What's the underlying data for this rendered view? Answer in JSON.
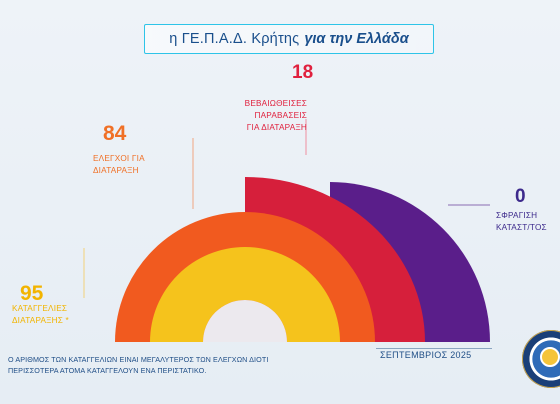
{
  "header": {
    "title_light": "η ΓΕ.Π.Α.Δ. Κρήτης",
    "title_bold": "για την Ελλάδα"
  },
  "chart_data": {
    "type": "bar",
    "categories": [
      "ΚΑΤΑΓΓΕΛΙΕΣ ΔΙΑΤΑΡΑΞΗΣ *",
      "ΕΛΕΓΧΟΙ ΓΙΑ ΔΙΑΤΑΡΑΞΗ",
      "ΒΕΒΑΙΩΘΕΙΣΕΣ ΠΑΡΑΒΑΣΕΙΣ ΓΙΑ ΔΙΑΤΑΡΑΞΗ",
      "ΣΦΡΑΓΙΣΗ ΚΑΤΑΣΤ/ΤΟΣ"
    ],
    "values": [
      95,
      84,
      18,
      0
    ],
    "labels": [
      {
        "value": "95",
        "line1": "ΚΑΤΑΓΓΕΛΙΕΣ",
        "line2": "ΔΙΑΤΑΡΑΞΗΣ  *"
      },
      {
        "value": "84",
        "line1": "ΕΛΕΓΧΟΙ ΓΙΑ",
        "line2": "ΔΙΑΤΑΡΑΞΗ"
      },
      {
        "value": "18",
        "line1": "ΒΕΒΑΙΩΘΕΙΣΕΣ",
        "line2": "ΠΑΡΑΒΑΣΕΙΣ",
        "line3": "ΓΙΑ ΔΙΑΤΑΡΑΞΗ"
      },
      {
        "value": "0",
        "line1": "ΣΦΡΑΓΙΣΗ",
        "line2": "ΚΑΤΑΣΤ/ΤΟΣ"
      }
    ],
    "colors": [
      "#f5c31c",
      "#f15a1f",
      "#d61f3b",
      "#5a1e8a"
    ],
    "value_colors": [
      "#f2b400",
      "#f07026",
      "#e0213e",
      "#3d2a8c"
    ]
  },
  "footer": {
    "note_line1": "Ο ΑΡΙΘΜΟΣ ΤΩΝ ΚΑΤΑΓΓΕΛΙΩΝ ΕΙΝΑΙ ΜΕΓΑΛΥΤΕΡΟΣ ΤΩΝ ΕΛΕΓΧΩΝ ΔΙΟΤΙ",
    "note_line2": "ΠΕΡΙΣΣΟΤΕΡΑ ΑΤΟΜΑ ΚΑΤΑΓΓΕΛΟΥΝ ΕΝΑ ΠΕΡΙΣΤΑΤΙΚΟ.",
    "month": "ΣΕΠΤΕΜΒΡΙΟΣ 2025"
  }
}
